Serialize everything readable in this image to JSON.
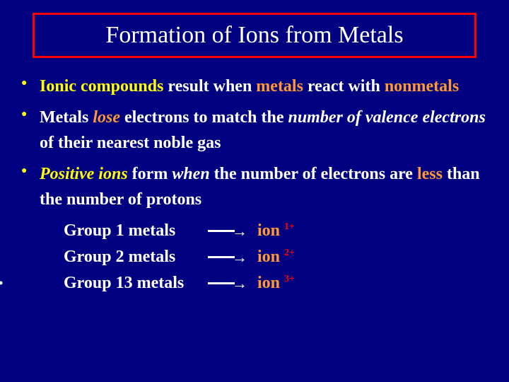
{
  "colors": {
    "background": "#000080",
    "title_border": "#ff0000",
    "text": "#ffffff",
    "bullet": "#ffff00",
    "yellow": "#ffff00",
    "orange": "#ff9933",
    "sup_red": "#ff0000"
  },
  "typography": {
    "font_family": "Times New Roman",
    "title_fontsize": 34,
    "body_fontsize": 24,
    "body_weight": "bold"
  },
  "title": "Formation of Ions from Metals",
  "bullets": {
    "b1": {
      "t1": "Ionic compounds",
      "t2": " result when ",
      "t3": "metals",
      "t4": " react with ",
      "t5": "nonmetals"
    },
    "b2": {
      "t1": "Metals ",
      "t2": "lose",
      "t3": " electrons to match the ",
      "t4": "number of valence electrons",
      "t5": " of their nearest noble gas"
    },
    "b3": {
      "t1": "Positive ions",
      "t2": " form ",
      "t3": "when",
      "t4": " the number of electrons are ",
      "t5": "less",
      "t6": " than the number of protons"
    }
  },
  "rows": [
    {
      "group": "Group 1 metals",
      "ion": "ion ",
      "charge": "1+",
      "leading_bullet": false
    },
    {
      "group": "Group 2 metals",
      "ion": "ion ",
      "charge": "2+",
      "leading_bullet": false
    },
    {
      "group": "Group 13 metals",
      "ion": "ion ",
      "charge": "3+",
      "leading_bullet": true
    }
  ]
}
